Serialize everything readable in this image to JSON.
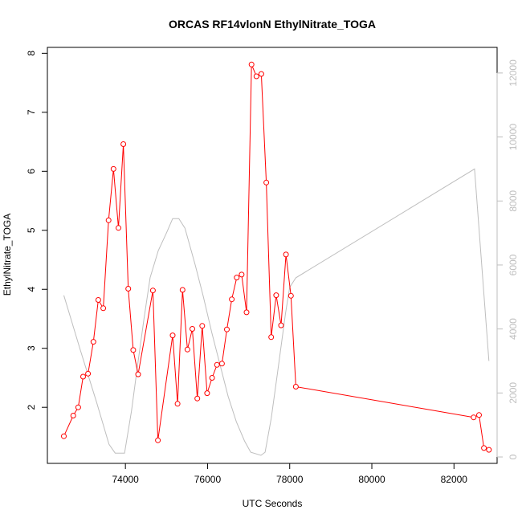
{
  "chart_data": {
    "type": "line",
    "title": "ORCAS RF14vlonN EthylNitrate_TOGA",
    "xlabel": "UTC Seconds",
    "ylabel": "EthylNitrate_TOGA",
    "xlim": [
      72100,
      83050
    ],
    "ylim": [
      1.05,
      8.1
    ],
    "y2lim": [
      -200,
      12800
    ],
    "x_ticks": [
      74000,
      76000,
      78000,
      80000,
      82000
    ],
    "y_ticks": [
      2,
      3,
      4,
      5,
      6,
      7,
      8
    ],
    "y2_ticks": [
      0,
      2000,
      4000,
      6000,
      8000,
      10000,
      12000
    ],
    "colors": {
      "primary": "#ff0000",
      "secondary": "#bebebe",
      "axis": "#000000"
    },
    "series": [
      {
        "axis": "left",
        "style": "line-with-open-circles",
        "color": "#ff0000",
        "x": [
          72500,
          72730,
          72850,
          72970,
          73090,
          73220,
          73340,
          73460,
          73590,
          73710,
          73830,
          73950,
          74070,
          74190,
          74310,
          74670,
          74790,
          75150,
          75270,
          75390,
          75510,
          75630,
          75750,
          75870,
          75990,
          76110,
          76230,
          76350,
          76470,
          76590,
          76710,
          76830,
          76950,
          77070,
          77190,
          77310,
          77430,
          77550,
          77670,
          77790,
          77910,
          78030,
          78150,
          82480,
          82610,
          82730,
          82850
        ],
        "y": [
          1.51,
          1.86,
          2.0,
          2.52,
          2.57,
          3.11,
          3.82,
          3.68,
          5.17,
          6.04,
          5.04,
          6.46,
          4.01,
          2.97,
          2.56,
          3.98,
          1.44,
          3.22,
          2.06,
          3.99,
          2.98,
          3.33,
          2.15,
          3.38,
          2.24,
          2.5,
          2.72,
          2.74,
          3.32,
          3.83,
          4.2,
          4.25,
          3.61,
          7.81,
          7.61,
          7.65,
          5.81,
          3.19,
          3.9,
          3.39,
          4.59,
          3.89,
          2.35,
          1.83,
          1.87,
          1.31,
          1.28
        ]
      },
      {
        "axis": "right",
        "style": "line",
        "color": "#bebebe",
        "x": [
          72500,
          72900,
          73300,
          73600,
          73750,
          73980,
          74150,
          74300,
          74450,
          74600,
          74800,
          75000,
          75150,
          75300,
          75450,
          75700,
          75900,
          76100,
          76300,
          76500,
          76700,
          76900,
          77050,
          77300,
          77400,
          77550,
          77700,
          77900,
          78000,
          78150,
          82500,
          82850
        ],
        "y": [
          5050,
          3350,
          1700,
          400,
          120,
          120,
          1450,
          2900,
          4300,
          5600,
          6450,
          7000,
          7450,
          7450,
          7150,
          6000,
          5000,
          3900,
          2900,
          1900,
          1100,
          500,
          150,
          50,
          150,
          1200,
          2600,
          4500,
          5300,
          5600,
          9000,
          3000
        ]
      }
    ]
  }
}
